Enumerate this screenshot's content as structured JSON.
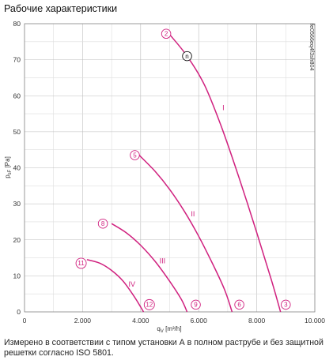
{
  "title": "Рабочие характеристики",
  "note": "Измерено в соответствии с типом установки А в полном раструбе и без защитной решетки согласно ISO 5801.",
  "figure_code": "fe0566eq4f3sh804",
  "chart_data": {
    "type": "line",
    "xlabel": "q",
    "xlabel_sub": "V",
    "xlabel_unit": " [m³/h]",
    "ylabel": "p",
    "ylabel_sub": "sF",
    "ylabel_unit": " [Pa]",
    "xlim": [
      0,
      10000
    ],
    "ylim": [
      0,
      80
    ],
    "x_ticks": [
      0,
      2000,
      4000,
      6000,
      8000,
      10000
    ],
    "x_tick_labels": [
      "0",
      "2.000",
      "4.000",
      "6.000",
      "8.000",
      "10.000"
    ],
    "y_ticks": [
      0,
      10,
      20,
      30,
      40,
      50,
      60,
      70,
      80
    ],
    "y_tick_labels": [
      "0",
      "10",
      "20",
      "30",
      "40",
      "50",
      "60",
      "70",
      "80"
    ],
    "grid": true,
    "curve_color": "#d0217f",
    "series": [
      {
        "name": "I",
        "label_at": [
          6850,
          56
        ],
        "points": [
          [
            5000,
            77
          ],
          [
            5600,
            71
          ],
          [
            6200,
            63
          ],
          [
            6800,
            51
          ],
          [
            7400,
            37
          ],
          [
            8000,
            22
          ],
          [
            8500,
            9
          ],
          [
            8820,
            0
          ]
        ]
      },
      {
        "name": "II",
        "label_at": [
          5800,
          26.5
        ],
        "points": [
          [
            3950,
            43.5
          ],
          [
            4500,
            39
          ],
          [
            5000,
            34
          ],
          [
            5500,
            28
          ],
          [
            6000,
            21
          ],
          [
            6500,
            13
          ],
          [
            6900,
            6
          ],
          [
            7150,
            0
          ]
        ]
      },
      {
        "name": "III",
        "label_at": [
          4750,
          13.5
        ],
        "points": [
          [
            3000,
            24.5
          ],
          [
            3500,
            22
          ],
          [
            4000,
            18.5
          ],
          [
            4500,
            14
          ],
          [
            5000,
            8.5
          ],
          [
            5400,
            3.5
          ],
          [
            5600,
            0
          ]
        ]
      },
      {
        "name": "IV",
        "label_at": [
          3700,
          7
        ],
        "points": [
          [
            2150,
            14.5
          ],
          [
            2600,
            13.5
          ],
          [
            3000,
            11.5
          ],
          [
            3400,
            8.5
          ],
          [
            3800,
            4
          ],
          [
            4100,
            0
          ]
        ]
      }
    ],
    "markers": [
      {
        "label": "2",
        "x": 4880,
        "y": 77.2,
        "color": "#d0217f"
      },
      {
        "label": "n",
        "x": 5600,
        "y": 71,
        "color": "#111111"
      },
      {
        "label": "3",
        "x": 9000,
        "y": 2,
        "color": "#d0217f"
      },
      {
        "label": "5",
        "x": 3800,
        "y": 43.5,
        "color": "#d0217f"
      },
      {
        "label": "6",
        "x": 7400,
        "y": 2,
        "color": "#d0217f"
      },
      {
        "label": "8",
        "x": 2700,
        "y": 24.5,
        "color": "#d0217f"
      },
      {
        "label": "9",
        "x": 5900,
        "y": 2,
        "color": "#d0217f"
      },
      {
        "label": "11",
        "x": 1950,
        "y": 13.5,
        "color": "#d0217f"
      },
      {
        "label": "12",
        "x": 4300,
        "y": 2,
        "color": "#d0217f"
      }
    ]
  }
}
